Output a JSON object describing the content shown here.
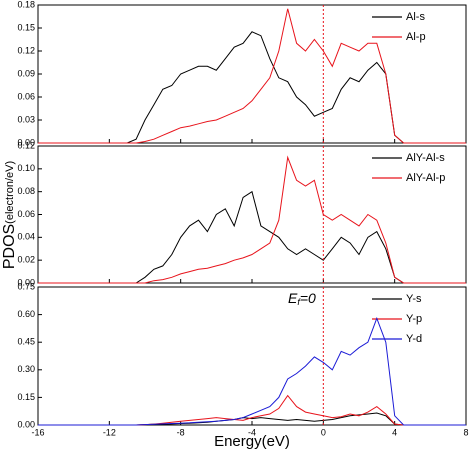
{
  "ylabel": {
    "main": "PDOS",
    "unit": "(electron/eV)"
  },
  "chart_data": [
    {
      "type": "line",
      "xlim": [
        -16,
        8
      ],
      "ylim": [
        0,
        0.18
      ],
      "vline": 0,
      "yticks": [
        {
          "value": 0,
          "label": "0.00"
        },
        {
          "value": 0.03,
          "label": "0.03"
        },
        {
          "value": 0.06,
          "label": "0.06"
        },
        {
          "value": 0.09,
          "label": "0.09"
        },
        {
          "value": 0.12,
          "label": "0.12"
        },
        {
          "value": 0.15,
          "label": "0.15"
        },
        {
          "value": 0.18,
          "label": "0.18"
        }
      ],
      "x": [
        -16,
        -11,
        -10.5,
        -10,
        -9.5,
        -9,
        -8.5,
        -8,
        -7.5,
        -7,
        -6.5,
        -6,
        -5.5,
        -5,
        -4.5,
        -4,
        -3.5,
        -3,
        -2.5,
        -2,
        -1.5,
        -1,
        -0.5,
        0,
        0.5,
        1,
        1.5,
        2,
        2.5,
        3,
        3.5,
        4,
        4.5,
        8
      ],
      "series": [
        {
          "name": "Al-s",
          "color": "#000000",
          "values": [
            0,
            0,
            0.005,
            0.03,
            0.05,
            0.07,
            0.075,
            0.09,
            0.095,
            0.1,
            0.1,
            0.095,
            0.11,
            0.125,
            0.13,
            0.145,
            0.14,
            0.11,
            0.085,
            0.08,
            0.06,
            0.05,
            0.035,
            0.04,
            0.045,
            0.07,
            0.085,
            0.08,
            0.095,
            0.105,
            0.09,
            0.01,
            0,
            0
          ]
        },
        {
          "name": "Al-p",
          "color": "#e8141c",
          "values": [
            0,
            0,
            0,
            0.002,
            0.005,
            0.01,
            0.015,
            0.02,
            0.022,
            0.025,
            0.028,
            0.03,
            0.035,
            0.04,
            0.045,
            0.055,
            0.07,
            0.085,
            0.12,
            0.175,
            0.13,
            0.12,
            0.135,
            0.12,
            0.1,
            0.13,
            0.125,
            0.12,
            0.13,
            0.13,
            0.09,
            0.01,
            0,
            0
          ]
        }
      ]
    },
    {
      "type": "line",
      "xlim": [
        -16,
        8
      ],
      "ylim": [
        0,
        0.12
      ],
      "vline": 0,
      "yticks": [
        {
          "value": 0,
          "label": "0.00"
        },
        {
          "value": 0.02,
          "label": "0.02"
        },
        {
          "value": 0.04,
          "label": "0.04"
        },
        {
          "value": 0.06,
          "label": "0.06"
        },
        {
          "value": 0.08,
          "label": "0.08"
        },
        {
          "value": 0.1,
          "label": "0.10"
        },
        {
          "value": 0.12,
          "label": "0.12"
        }
      ],
      "x": [
        -16,
        -11,
        -10.5,
        -10,
        -9.5,
        -9,
        -8.5,
        -8,
        -7.5,
        -7,
        -6.5,
        -6,
        -5.5,
        -5,
        -4.5,
        -4,
        -3.5,
        -3,
        -2.5,
        -2,
        -1.5,
        -1,
        -0.5,
        0,
        0.5,
        1,
        1.5,
        2,
        2.5,
        3,
        3.5,
        4,
        4.5,
        8
      ],
      "series": [
        {
          "name": "AlY-Al-s",
          "color": "#000000",
          "values": [
            0,
            0,
            0,
            0.005,
            0.012,
            0.015,
            0.025,
            0.04,
            0.05,
            0.055,
            0.045,
            0.06,
            0.065,
            0.05,
            0.075,
            0.08,
            0.05,
            0.045,
            0.04,
            0.03,
            0.025,
            0.03,
            0.025,
            0.02,
            0.03,
            0.04,
            0.035,
            0.025,
            0.04,
            0.045,
            0.03,
            0.005,
            0,
            0
          ]
        },
        {
          "name": "AlY-Al-p",
          "color": "#e8141c",
          "values": [
            0,
            0,
            0,
            0,
            0.002,
            0.003,
            0.005,
            0.008,
            0.01,
            0.012,
            0.013,
            0.015,
            0.017,
            0.02,
            0.022,
            0.025,
            0.03,
            0.035,
            0.055,
            0.11,
            0.09,
            0.085,
            0.09,
            0.06,
            0.055,
            0.06,
            0.055,
            0.05,
            0.06,
            0.055,
            0.035,
            0.005,
            0,
            0
          ]
        }
      ]
    },
    {
      "type": "line",
      "xlim": [
        -16,
        8
      ],
      "ylim": [
        0,
        0.75
      ],
      "vline": 0,
      "yticks": [
        {
          "value": 0,
          "label": "0.00"
        },
        {
          "value": 0.15,
          "label": "0.15"
        },
        {
          "value": 0.3,
          "label": "0.30"
        },
        {
          "value": 0.45,
          "label": "0.45"
        },
        {
          "value": 0.6,
          "label": "0.60"
        },
        {
          "value": 0.75,
          "label": "0.75"
        }
      ],
      "xticks": [
        -16,
        -12,
        -8,
        -4,
        0,
        4,
        8
      ],
      "xlabel": "Energy(eV)",
      "annotation": [
        "E",
        "f",
        "=0"
      ],
      "x": [
        -16,
        -11,
        -10.5,
        -10,
        -9.5,
        -9,
        -8.5,
        -8,
        -7.5,
        -7,
        -6.5,
        -6,
        -5.5,
        -5,
        -4.5,
        -4,
        -3.5,
        -3,
        -2.5,
        -2,
        -1.5,
        -1,
        -0.5,
        0,
        0.5,
        1,
        1.5,
        2,
        2.5,
        3,
        3.5,
        4,
        4.5,
        8
      ],
      "series": [
        {
          "name": "Y-s",
          "color": "#000000",
          "values": [
            0,
            0,
            0,
            0.002,
            0.004,
            0.005,
            0.006,
            0.008,
            0.01,
            0.012,
            0.015,
            0.02,
            0.025,
            0.03,
            0.04,
            0.035,
            0.04,
            0.035,
            0.03,
            0.025,
            0.03,
            0.025,
            0.02,
            0.025,
            0.03,
            0.04,
            0.05,
            0.055,
            0.06,
            0.065,
            0.05,
            0.005,
            0,
            0
          ]
        },
        {
          "name": "Y-p",
          "color": "#e8141c",
          "values": [
            0,
            0,
            0,
            0.002,
            0.005,
            0.01,
            0.015,
            0.02,
            0.025,
            0.03,
            0.035,
            0.04,
            0.035,
            0.03,
            0.025,
            0.04,
            0.05,
            0.06,
            0.09,
            0.16,
            0.1,
            0.07,
            0.06,
            0.05,
            0.04,
            0.045,
            0.06,
            0.05,
            0.07,
            0.1,
            0.06,
            0.005,
            0,
            0
          ]
        },
        {
          "name": "Y-d",
          "color": "#1b1bd6",
          "values": [
            0,
            0,
            0,
            0.002,
            0.004,
            0.006,
            0.008,
            0.01,
            0.012,
            0.015,
            0.018,
            0.02,
            0.025,
            0.03,
            0.04,
            0.06,
            0.08,
            0.1,
            0.15,
            0.25,
            0.28,
            0.32,
            0.37,
            0.34,
            0.3,
            0.4,
            0.38,
            0.42,
            0.45,
            0.58,
            0.45,
            0.05,
            0,
            0
          ]
        }
      ]
    }
  ]
}
